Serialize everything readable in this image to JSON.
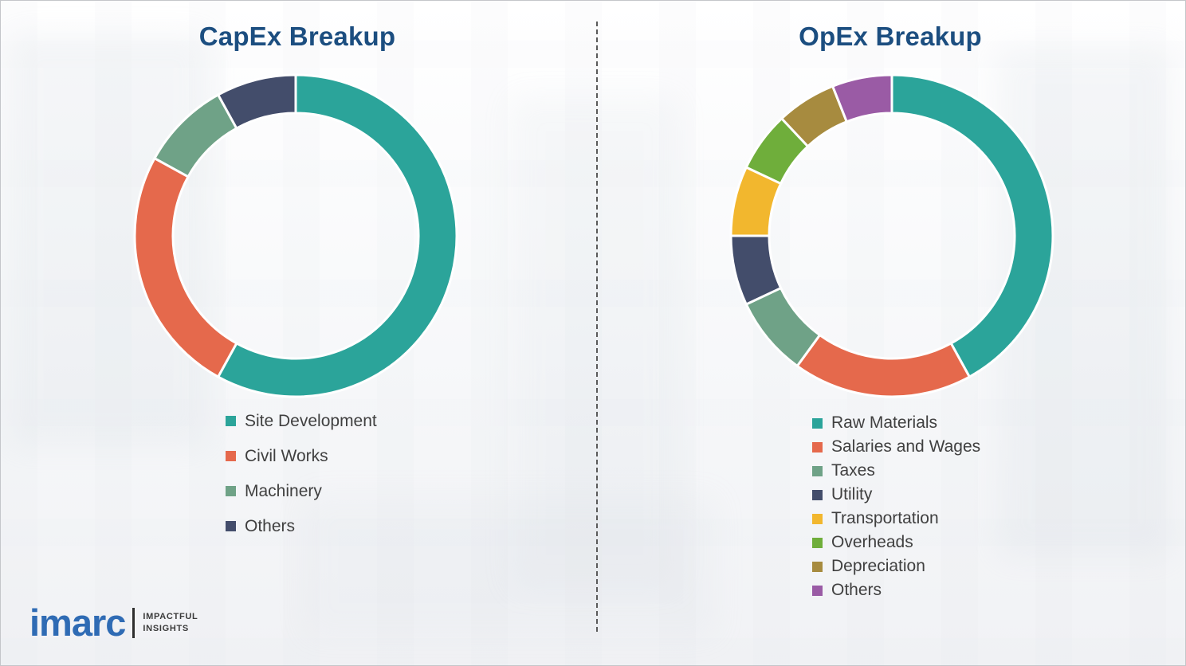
{
  "chart_data": [
    {
      "type": "pie",
      "style": "donut",
      "title": "CapEx Breakup",
      "legend_position": "bottom-left",
      "segments": [
        {
          "label": "Site Development",
          "value": 58,
          "color": "#2BA49A"
        },
        {
          "label": "Civil Works",
          "value": 25,
          "color": "#E5694C"
        },
        {
          "label": "Machinery",
          "value": 9,
          "color": "#6FA287"
        },
        {
          "label": "Others",
          "value": 8,
          "color": "#434D6B"
        }
      ]
    },
    {
      "type": "pie",
      "style": "donut",
      "title": "OpEx Breakup",
      "legend_position": "bottom-left",
      "segments": [
        {
          "label": "Raw Materials",
          "value": 42,
          "color": "#2BA49A"
        },
        {
          "label": "Salaries and Wages",
          "value": 18,
          "color": "#E5694C"
        },
        {
          "label": "Taxes",
          "value": 8,
          "color": "#6FA287"
        },
        {
          "label": "Utility",
          "value": 7,
          "color": "#434D6B"
        },
        {
          "label": "Transportation",
          "value": 7,
          "color": "#F2B72E"
        },
        {
          "label": "Overheads",
          "value": 6,
          "color": "#6FAE3B"
        },
        {
          "label": "Depreciation",
          "value": 6,
          "color": "#A78B3F"
        },
        {
          "label": "Others",
          "value": 6,
          "color": "#9A5BA5"
        }
      ]
    }
  ],
  "logo": {
    "brand": "imarc",
    "tagline": [
      "IMPACTFUL",
      "INSIGHTS"
    ]
  }
}
